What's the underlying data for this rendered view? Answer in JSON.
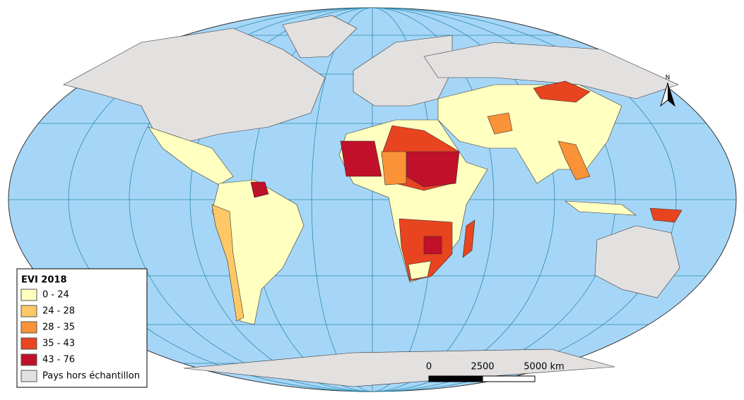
{
  "legend": {
    "title": "EVI 2018",
    "classes": [
      {
        "label": "0 - 24",
        "color": "#ffffc0"
      },
      {
        "label": "24 - 28",
        "color": "#fdc865"
      },
      {
        "label": "28 - 35",
        "color": "#fa9237"
      },
      {
        "label": "35 - 43",
        "color": "#e8441f"
      },
      {
        "label": "43 - 76",
        "color": "#c0102a"
      }
    ],
    "other": {
      "label": "Pays hors échantillon",
      "color": "#e3e0e0"
    }
  },
  "scale_bar": {
    "labels": [
      "0",
      "2500",
      "5000 km"
    ]
  },
  "north_arrow": {
    "label": "N"
  }
}
